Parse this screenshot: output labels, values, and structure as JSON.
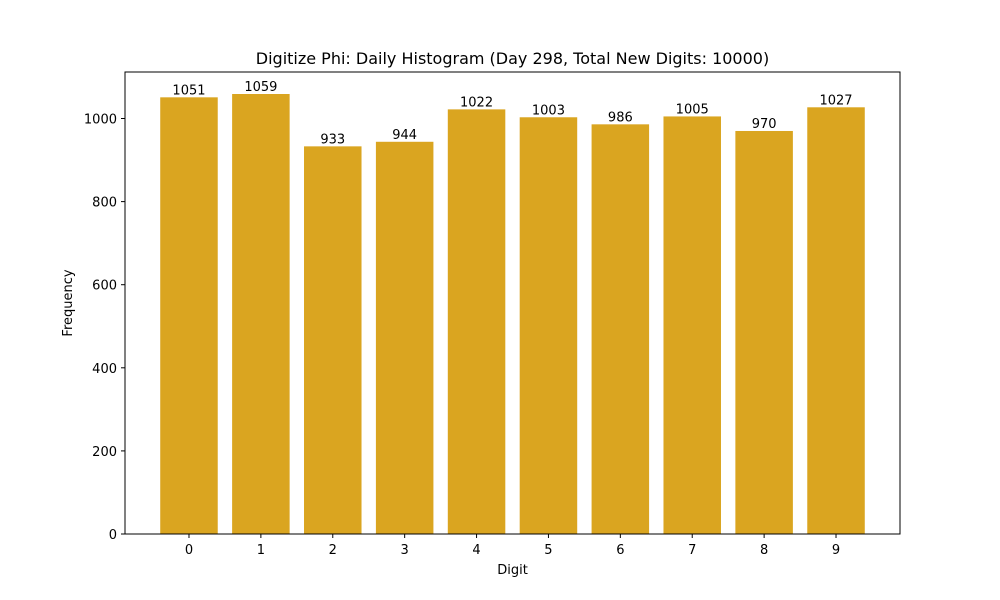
{
  "chart_data": {
    "type": "bar",
    "title": "Digitize Phi: Daily Histogram (Day 298, Total New Digits: 10000)",
    "xlabel": "Digit",
    "ylabel": "Frequency",
    "categories": [
      "0",
      "1",
      "2",
      "3",
      "4",
      "5",
      "6",
      "7",
      "8",
      "9"
    ],
    "values": [
      1051,
      1059,
      933,
      944,
      1022,
      1003,
      986,
      1005,
      970,
      1027
    ],
    "ylim": [
      0,
      1111.95
    ],
    "yticks": [
      0,
      200,
      400,
      600,
      800,
      1000
    ],
    "bar_color": "#DAA520",
    "grid": false,
    "legend": "none"
  }
}
